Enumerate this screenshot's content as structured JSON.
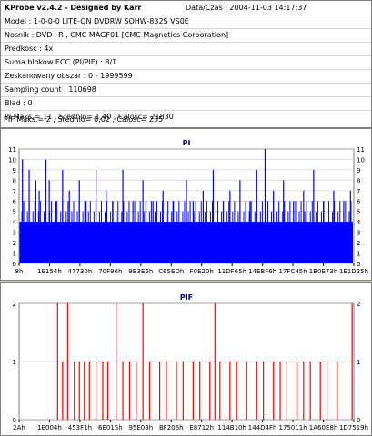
{
  "header": {
    "title": "KProbe v2.4.2 - Designed by Karr",
    "datetime_label": "Data/Czas : 2004-11-03 14:17:37"
  },
  "info_lines": [
    "Model : 1-0-0-0 LITE-ON DVDRW SOHW-832S  VS0E",
    "Nosnik : DVD+R , CMC MAGF01 [CMC Magnetics Corporation]",
    "Predkosc : 4x",
    "Suma blokow ECC (PI/PIF) : 8/1",
    "Zeskanowany obszar : 0 - 1999599",
    "Sampling count : 110698",
    "Blad : 0",
    "PI Maks.= 11 , Srednio= 1,40 , Calosc= 21830",
    "PIF Maks.= 2 , Srednio= 0,02 , Calosc= 235"
  ],
  "colors": {
    "pi_bars": "#0000ff",
    "pif_bars": "#ff0000",
    "grid": "#c0c0c0",
    "title": "#000080"
  },
  "chart_data": [
    {
      "type": "bar",
      "title": "PI",
      "ylim": [
        0,
        11
      ],
      "yticks": [
        0,
        1,
        2,
        3,
        4,
        5,
        6,
        7,
        8,
        9,
        10,
        11
      ],
      "xtick_labels": [
        "8h",
        "1E154h",
        "47730h",
        "70F96h",
        "9B3E6h",
        "C65EDh",
        "F0E20h",
        "11DF65h",
        "14EBF6h",
        "17FC45h",
        "1B0E73h",
        "1E1D25h"
      ],
      "baseline": 4,
      "spikes": [
        {
          "x": 0.01,
          "v": 10
        },
        {
          "x": 0.03,
          "v": 9
        },
        {
          "x": 0.05,
          "v": 8
        },
        {
          "x": 0.06,
          "v": 7
        },
        {
          "x": 0.08,
          "v": 10
        },
        {
          "x": 0.09,
          "v": 8
        },
        {
          "x": 0.11,
          "v": 6
        },
        {
          "x": 0.13,
          "v": 9
        },
        {
          "x": 0.15,
          "v": 7
        },
        {
          "x": 0.18,
          "v": 8
        },
        {
          "x": 0.2,
          "v": 6
        },
        {
          "x": 0.23,
          "v": 9
        },
        {
          "x": 0.26,
          "v": 7
        },
        {
          "x": 0.28,
          "v": 6
        },
        {
          "x": 0.31,
          "v": 9
        },
        {
          "x": 0.34,
          "v": 6
        },
        {
          "x": 0.37,
          "v": 8
        },
        {
          "x": 0.4,
          "v": 6
        },
        {
          "x": 0.43,
          "v": 7
        },
        {
          "x": 0.46,
          "v": 6
        },
        {
          "x": 0.5,
          "v": 8
        },
        {
          "x": 0.52,
          "v": 6
        },
        {
          "x": 0.55,
          "v": 7
        },
        {
          "x": 0.58,
          "v": 9
        },
        {
          "x": 0.61,
          "v": 6
        },
        {
          "x": 0.63,
          "v": 7
        },
        {
          "x": 0.66,
          "v": 8
        },
        {
          "x": 0.69,
          "v": 6
        },
        {
          "x": 0.71,
          "v": 9
        },
        {
          "x": 0.735,
          "v": 11
        },
        {
          "x": 0.76,
          "v": 7
        },
        {
          "x": 0.79,
          "v": 8
        },
        {
          "x": 0.82,
          "v": 6
        },
        {
          "x": 0.85,
          "v": 7
        },
        {
          "x": 0.88,
          "v": 9
        },
        {
          "x": 0.91,
          "v": 6
        },
        {
          "x": 0.94,
          "v": 7
        },
        {
          "x": 0.97,
          "v": 6
        },
        {
          "x": 0.99,
          "v": 7
        }
      ]
    },
    {
      "type": "bar",
      "title": "PIF",
      "ylim": [
        0,
        2
      ],
      "yticks": [
        0,
        1,
        2
      ],
      "xtick_labels": [
        "2Ah",
        "1E004h",
        "453F1h",
        "6E015h",
        "95E03h",
        "BF206h",
        "E8712h",
        "114B10h",
        "144D4Fh",
        "175011h",
        "1A60E8h",
        "1D7519h"
      ],
      "spikes": [
        {
          "x": 0.115,
          "v": 2
        },
        {
          "x": 0.13,
          "v": 1
        },
        {
          "x": 0.145,
          "v": 2
        },
        {
          "x": 0.165,
          "v": 1
        },
        {
          "x": 0.18,
          "v": 1
        },
        {
          "x": 0.195,
          "v": 1
        },
        {
          "x": 0.21,
          "v": 1
        },
        {
          "x": 0.23,
          "v": 1
        },
        {
          "x": 0.25,
          "v": 1
        },
        {
          "x": 0.265,
          "v": 1
        },
        {
          "x": 0.29,
          "v": 2
        },
        {
          "x": 0.31,
          "v": 1
        },
        {
          "x": 0.33,
          "v": 1
        },
        {
          "x": 0.35,
          "v": 1
        },
        {
          "x": 0.37,
          "v": 2
        },
        {
          "x": 0.39,
          "v": 1
        },
        {
          "x": 0.42,
          "v": 1
        },
        {
          "x": 0.44,
          "v": 1
        },
        {
          "x": 0.47,
          "v": 1
        },
        {
          "x": 0.49,
          "v": 1
        },
        {
          "x": 0.52,
          "v": 1
        },
        {
          "x": 0.54,
          "v": 1
        },
        {
          "x": 0.57,
          "v": 1
        },
        {
          "x": 0.585,
          "v": 2
        },
        {
          "x": 0.6,
          "v": 1
        },
        {
          "x": 0.63,
          "v": 1
        },
        {
          "x": 0.65,
          "v": 1
        },
        {
          "x": 0.68,
          "v": 1
        },
        {
          "x": 0.71,
          "v": 1
        },
        {
          "x": 0.73,
          "v": 1
        },
        {
          "x": 0.76,
          "v": 1
        },
        {
          "x": 0.78,
          "v": 1
        },
        {
          "x": 0.8,
          "v": 1
        },
        {
          "x": 0.83,
          "v": 1
        },
        {
          "x": 0.85,
          "v": 1
        },
        {
          "x": 0.87,
          "v": 1
        },
        {
          "x": 0.9,
          "v": 1
        },
        {
          "x": 0.92,
          "v": 1
        },
        {
          "x": 0.95,
          "v": 1
        },
        {
          "x": 0.995,
          "v": 2
        }
      ]
    }
  ]
}
